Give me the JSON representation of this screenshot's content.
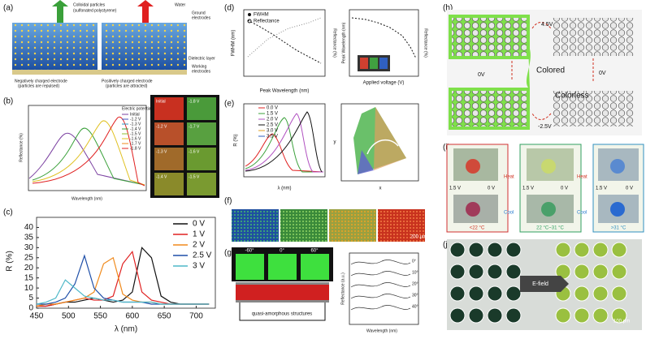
{
  "chart_data": {
    "type": "line",
    "xlabel": "λ (nm)",
    "ylabel": "R (%)",
    "x": [
      450,
      465,
      480,
      495,
      510,
      525,
      540,
      555,
      570,
      585,
      600,
      615,
      630,
      645,
      660,
      675,
      690,
      705,
      720
    ],
    "series": [
      {
        "name": "0 V",
        "color": "#111111",
        "values": [
          1,
          1,
          2,
          3,
          3,
          4,
          5,
          4,
          3,
          4,
          8,
          30,
          25,
          6,
          3,
          2,
          2,
          2,
          2
        ]
      },
      {
        "name": "1 V",
        "color": "#e02020",
        "values": [
          1,
          1,
          2,
          3,
          4,
          5,
          4,
          4,
          6,
          22,
          28,
          8,
          4,
          3,
          2,
          2,
          2,
          2,
          2
        ]
      },
      {
        "name": "2 V",
        "color": "#f08a1c",
        "values": [
          1,
          2,
          2,
          3,
          4,
          5,
          8,
          22,
          25,
          7,
          4,
          3,
          3,
          2,
          2,
          2,
          2,
          2,
          2
        ]
      },
      {
        "name": "2.5 V",
        "color": "#1f4fa8",
        "values": [
          2,
          2,
          3,
          5,
          12,
          26,
          10,
          5,
          4,
          3,
          3,
          3,
          2,
          2,
          2,
          2,
          2,
          2,
          2
        ]
      },
      {
        "name": "3 V",
        "color": "#4fb8c8",
        "values": [
          2,
          3,
          5,
          14,
          10,
          6,
          5,
          4,
          4,
          3,
          3,
          3,
          3,
          2,
          2,
          2,
          2,
          2,
          2
        ]
      }
    ],
    "xlim": [
      450,
      730
    ],
    "xticks": [
      450,
      500,
      550,
      600,
      650,
      700
    ],
    "ylim": [
      0,
      45
    ],
    "yticks": [
      0,
      5,
      10,
      15,
      20,
      25,
      30,
      35,
      40
    ],
    "legend": "upper right"
  },
  "panels": {
    "a": {
      "label": "(a)",
      "texts": [
        "Colloidal particles",
        "(sulfonated polystyrene)",
        "Water",
        "Ground",
        "electrodes",
        "Dielectric layer",
        "Working",
        "electrodes",
        "Negatively charged electrode",
        "(particles are repulsed)",
        "Positively charged electrode",
        "(particles are attracted)"
      ]
    },
    "b": {
      "label": "(b)",
      "legend_title": "Electric potential",
      "legend": [
        "Initial",
        "-1.2 V",
        "-1.3 V",
        "-1.4 V",
        "-1.5 V",
        "-1.6 V",
        "-1.7 V",
        "-1.8 V"
      ],
      "ylabel": "Reflectance (%)",
      "xlabel": "Wavelength (nm)",
      "photos": [
        "Initial",
        "-1.8 V",
        "-1.2 V",
        "-1.7 V",
        "-1.3 V",
        "-1.6 V",
        "-1.4 V",
        "-1.5 V"
      ]
    },
    "c": {
      "label": "(c)"
    },
    "d": {
      "label": "(d)",
      "legend": [
        "FWHM",
        "Reflectance"
      ],
      "xlabel1": "Peak Wavelength (nm)",
      "ylabel1": "FWHM (nm)",
      "y2label1": "Reflectance (%)",
      "xlabel2": "Applied voltage (V)",
      "ylabel2": "Peak Wavelength (nm)",
      "y2label2": "Reflectance (%)"
    },
    "e": {
      "label": "(e)",
      "legend": [
        "0.0 V",
        "1.5 V",
        "2.0 V",
        "2.5 V",
        "3.0 V",
        "3.5 V"
      ],
      "ylabel": "R (%)",
      "xlabel": "λ (nm)",
      "cie_x": "x",
      "cie_y": "y"
    },
    "f": {
      "label": "(f)",
      "scale": "200 μm"
    },
    "g": {
      "label": "(g)",
      "angles": [
        "-60°",
        "0°",
        "60°"
      ],
      "caption": "quasi-amorphous structures",
      "ylabel": "Reflectance (a.u.)",
      "xlabel": "Wavelength (nm)",
      "curves": [
        "0°",
        "10°",
        "20°",
        "30°",
        "40°"
      ]
    },
    "h": {
      "label": "(h)",
      "texts": [
        "4.5V",
        "0V",
        "Colored",
        "0V",
        "Colorless",
        "-2.5V"
      ]
    },
    "i": {
      "label": "(i)",
      "texts": [
        "1.5 V",
        "0 V",
        "Heat",
        "Cool",
        "1.5 V",
        "0 V",
        "Heat",
        "Cool",
        "1.5 V",
        "0 V",
        "<22 °C",
        "22 °C~31 °C",
        ">31 °C"
      ]
    },
    "j": {
      "label": "(j)",
      "texts": [
        "E-field",
        "100 μm"
      ]
    }
  }
}
